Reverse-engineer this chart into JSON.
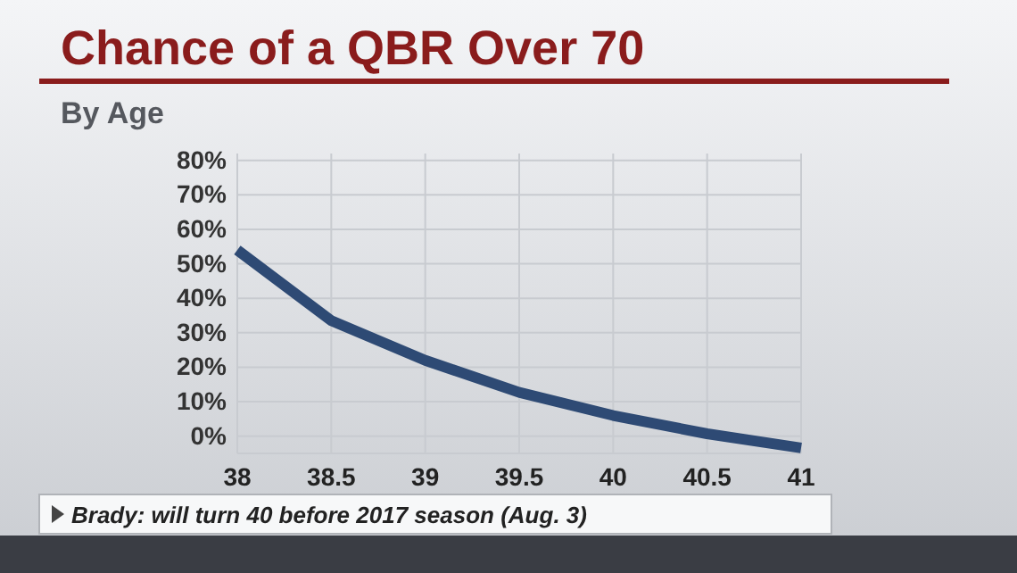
{
  "chart_data": {
    "type": "line",
    "title": "Chance of a QBR Over 70",
    "subtitle": "By Age",
    "x": [
      38,
      38.5,
      39,
      39.5,
      40,
      40.5,
      41
    ],
    "series": [
      {
        "color": "#2e4a74",
        "values": [
          54,
          33.5,
          22,
          12.7,
          6,
          0.7,
          -3.4
        ]
      }
    ],
    "xlim": [
      38,
      41
    ],
    "xticks": [
      38,
      38.5,
      39,
      39.5,
      40,
      40.5,
      41
    ],
    "ylim": [
      -5,
      82
    ],
    "yticks": [
      {
        "value": 0,
        "label": "0%"
      },
      {
        "value": 10,
        "label": "10%"
      },
      {
        "value": 20,
        "label": "20%"
      },
      {
        "value": 30,
        "label": "30%"
      },
      {
        "value": 40,
        "label": "40%"
      },
      {
        "value": 50,
        "label": "50%"
      },
      {
        "value": 60,
        "label": "60%"
      },
      {
        "value": 70,
        "label": "70%"
      },
      {
        "value": 80,
        "label": "80%"
      }
    ],
    "grid": true,
    "marker": "none",
    "line_style": "solid",
    "annotations": [
      "Brady: will turn 40 before 2017 season (Aug. 3)"
    ]
  }
}
